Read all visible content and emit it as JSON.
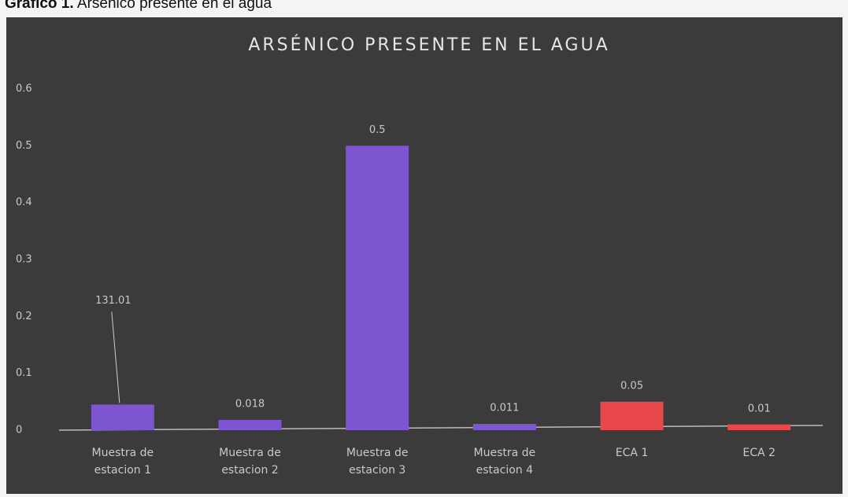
{
  "caption": {
    "label": "Gráfico 1.",
    "text": "Arsénico presente en el agua"
  },
  "chart_data": {
    "type": "bar",
    "title": "ARSÉNICO PRESENTE EN EL AGUA",
    "categories": [
      "Muestra de estacion 1",
      "Muestra de estacion 2",
      "Muestra de estacion 3",
      "Muestra de estacion 4",
      "ECA 1",
      "ECA 2"
    ],
    "values": [
      0.045,
      0.018,
      0.5,
      0.011,
      0.05,
      0.01
    ],
    "show_value_labels": [
      false,
      true,
      true,
      true,
      true,
      true
    ],
    "colors": [
      "#7d55d0",
      "#7d55d0",
      "#7d55d0",
      "#7d55d0",
      "#e8474c",
      "#e8474c"
    ],
    "annotations": [
      {
        "text": "131.01",
        "category": 0
      }
    ],
    "ylim": [
      0,
      0.6
    ],
    "yticks": [
      0,
      0.1,
      0.2,
      0.3,
      0.4,
      0.5,
      0.6
    ],
    "grid": false
  }
}
